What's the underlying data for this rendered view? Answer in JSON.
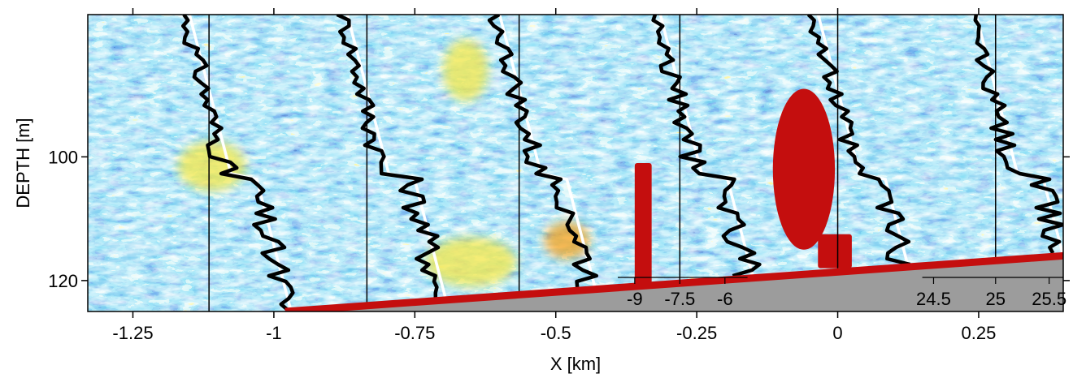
{
  "chart_data": {
    "type": "heatmap",
    "xlabel": "X [km]",
    "ylabel": "DEPTH [m]",
    "xlim": [
      -1.33,
      0.4
    ],
    "ylim": [
      125,
      77
    ],
    "y_reversed": true,
    "x_ticks": [
      {
        "value": -1.25,
        "label": "-1.25"
      },
      {
        "value": -1.0,
        "label": "-1"
      },
      {
        "value": -0.75,
        "label": "-0.75"
      },
      {
        "value": -0.5,
        "label": "-0.5"
      },
      {
        "value": -0.25,
        "label": "-0.25"
      },
      {
        "value": 0.0,
        "label": "0"
      },
      {
        "value": 0.25,
        "label": "0.25"
      }
    ],
    "y_ticks": [
      {
        "value": 100,
        "label": "100"
      },
      {
        "value": 120,
        "label": "120"
      }
    ],
    "seabed": {
      "x": [
        -0.98,
        0.4
      ],
      "depth": [
        125,
        116
      ]
    },
    "colormap": [
      "#0a2ea0",
      "#1e5ad0",
      "#36b4e8",
      "#9ce6ea",
      "#f5e84a",
      "#f6a21a",
      "#c40e0e"
    ],
    "seabed_color": "#9c9c9c",
    "profile_station_x": [
      -1.115,
      -0.835,
      -0.565,
      -0.28,
      0.0,
      0.28
    ],
    "temperature_axis": {
      "values": [
        "-9",
        "-7.5",
        "-6"
      ],
      "label_x": [
        -0.36,
        -0.28,
        -0.2
      ]
    },
    "density_axis": {
      "values": [
        "24.5",
        "25",
        "25.5"
      ],
      "label_x": [
        0.17,
        0.28,
        0.375
      ]
    },
    "echo_features": [
      {
        "shape": "column",
        "x": [
          -0.36,
          -0.33
        ],
        "depth": [
          101,
          120.5
        ],
        "color": "#c40e0e"
      },
      {
        "shape": "ellipse",
        "x_center": -0.06,
        "depth_center": 102,
        "x_radius": 0.055,
        "depth_radius": 13,
        "color": "#c40e0e"
      },
      {
        "shape": "column",
        "x": [
          -0.035,
          0.025
        ],
        "depth": [
          112.5,
          118
        ],
        "color": "#c40e0e"
      },
      {
        "shape": "patch",
        "x_center": -1.11,
        "depth_center": 101.5,
        "x_radius": 0.06,
        "depth_radius": 4,
        "color": "#f5e84a"
      },
      {
        "shape": "patch",
        "x_center": -0.66,
        "depth_center": 86,
        "x_radius": 0.04,
        "depth_radius": 5,
        "color": "#f5e84a"
      },
      {
        "shape": "patch",
        "x_center": -0.65,
        "depth_center": 117,
        "x_radius": 0.08,
        "depth_radius": 4,
        "color": "#f5e84a"
      },
      {
        "shape": "patch",
        "x_center": -0.48,
        "depth_center": 113.5,
        "x_radius": 0.04,
        "depth_radius": 3,
        "color": "#f6a21a"
      }
    ]
  }
}
